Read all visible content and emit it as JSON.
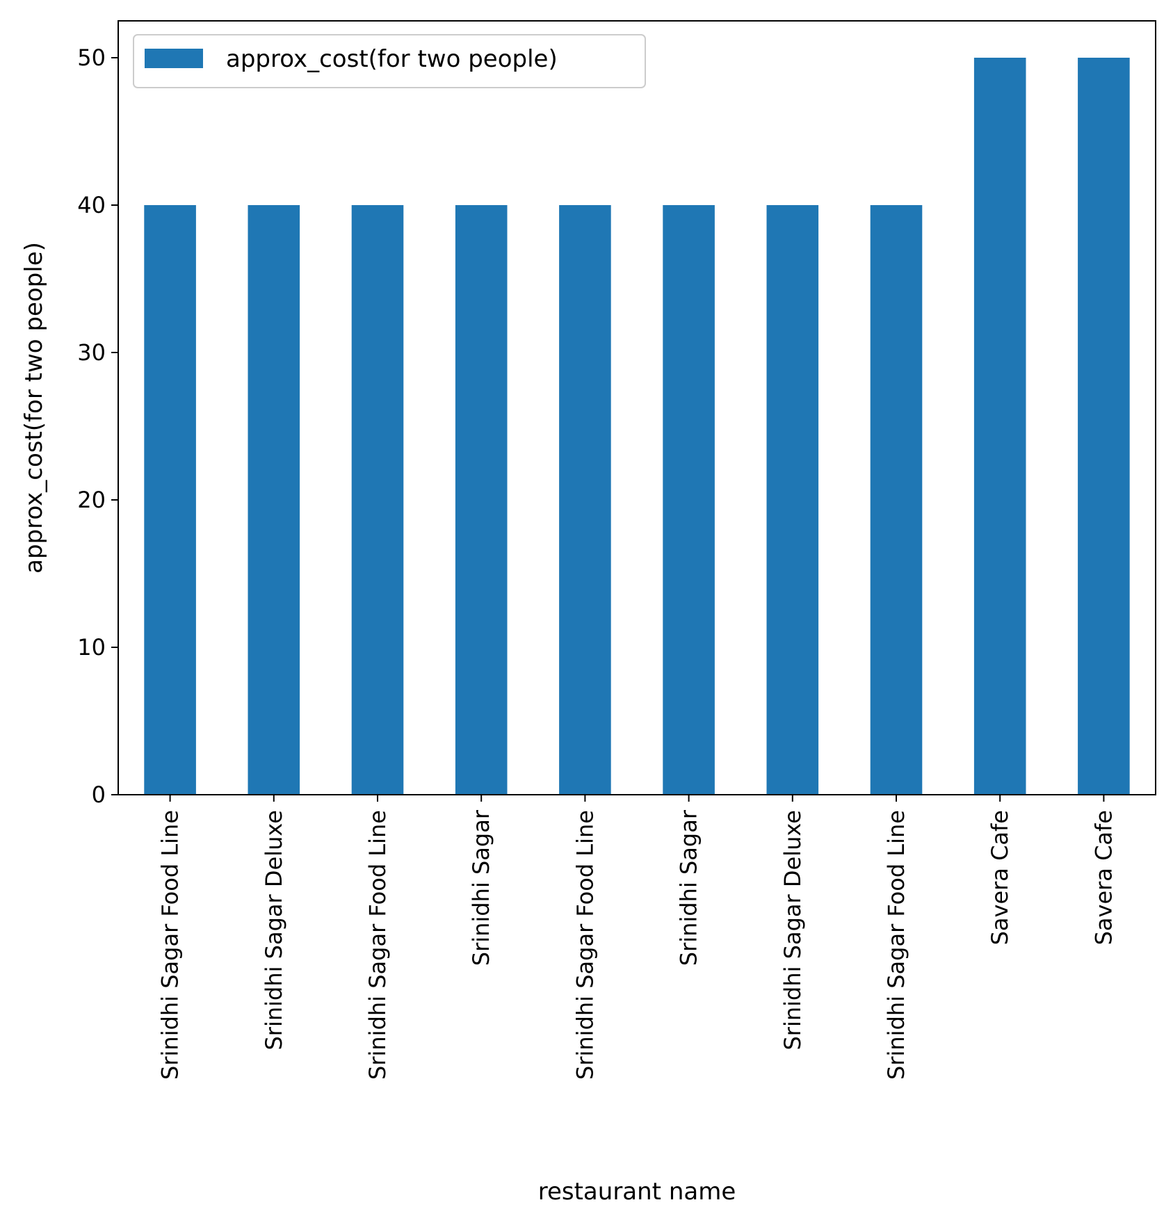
{
  "chart_data": {
    "type": "bar",
    "categories": [
      "Srinidhi Sagar Food Line",
      "Srinidhi Sagar Deluxe",
      "Srinidhi Sagar Food Line",
      "Srinidhi Sagar",
      "Srinidhi Sagar Food Line",
      "Srinidhi Sagar",
      "Srinidhi Sagar Deluxe",
      "Srinidhi Sagar Food Line",
      "Savera Cafe",
      "Savera Cafe"
    ],
    "series": [
      {
        "name": "approx_cost(for two people)",
        "values": [
          40,
          40,
          40,
          40,
          40,
          40,
          40,
          40,
          50,
          50
        ],
        "color": "#1f77b4"
      }
    ],
    "title": "",
    "xlabel": "restaurant name",
    "ylabel": "approx_cost(for two people)",
    "ylim": [
      0,
      52.5
    ],
    "yticks": [
      0,
      10,
      20,
      30,
      40,
      50
    ],
    "grid": false,
    "legend_position": "top-left"
  }
}
